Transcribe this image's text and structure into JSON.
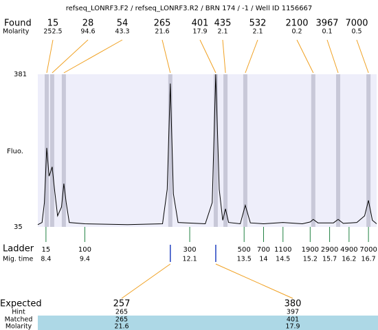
{
  "chart_data": {
    "type": "electropherogram",
    "title": "refseq_LONRF3.F2 / refseq_LONRF3.R2 / BRN 174 / -1 / Well ID 1156667",
    "y_label": "Fluo.",
    "ylim": [
      35,
      381
    ],
    "yticks": [
      35,
      381
    ],
    "xlim": [
      8.19,
      16.91
    ],
    "trace": {
      "color": "#000000",
      "x": [
        8.19,
        8.3,
        8.36,
        8.42,
        8.48,
        8.52,
        8.56,
        8.62,
        8.7,
        8.8,
        8.86,
        8.92,
        9.0,
        9.4,
        10.5,
        11.4,
        11.52,
        11.6,
        11.68,
        11.8,
        12.5,
        12.68,
        12.77,
        12.86,
        12.95,
        13.02,
        13.1,
        13.4,
        13.53,
        13.66,
        14.0,
        14.5,
        15.0,
        15.2,
        15.28,
        15.4,
        15.8,
        15.92,
        16.05,
        16.4,
        16.6,
        16.7,
        16.8,
        16.91
      ],
      "y": [
        40,
        45,
        90,
        214,
        150,
        160,
        171,
        120,
        60,
        80,
        133,
        90,
        45,
        42,
        40,
        42,
        120,
        360,
        110,
        45,
        42,
        90,
        381,
        120,
        50,
        76,
        45,
        42,
        84,
        44,
        42,
        45,
        42,
        46,
        52,
        44,
        44,
        52,
        43,
        45,
        60,
        95,
        50,
        42
      ]
    },
    "found": {
      "label": "Found",
      "molarity_label": "Molarity",
      "size": [
        15,
        28,
        54,
        265,
        401,
        435,
        532,
        2100,
        3967,
        7000
      ],
      "molarity": [
        252.5,
        94.6,
        43.3,
        21.6,
        17.9,
        2.1,
        2.1,
        0.2,
        0.1,
        0.5
      ],
      "time": [
        8.42,
        8.56,
        8.86,
        11.6,
        12.77,
        13.02,
        13.53,
        15.28,
        15.92,
        16.7
      ]
    },
    "ladder": {
      "label": "Ladder",
      "time_label": "Mig. time",
      "size": [
        15,
        100,
        300,
        500,
        700,
        1100,
        1900,
        2900,
        4900,
        7000
      ],
      "time": [
        8.4,
        9.4,
        12.1,
        13.5,
        14,
        14.5,
        15.2,
        15.7,
        16.2,
        16.7
      ]
    },
    "expected": {
      "label": "Expected",
      "hint_label": "Hint",
      "matched_label": "Matched",
      "molarity_label": "Molarity",
      "expected": [
        257,
        380
      ],
      "hint": [
        265,
        397
      ],
      "matched": [
        265,
        401
      ],
      "molarity": [
        21.6,
        17.9
      ],
      "time": [
        11.6,
        12.77
      ]
    }
  }
}
